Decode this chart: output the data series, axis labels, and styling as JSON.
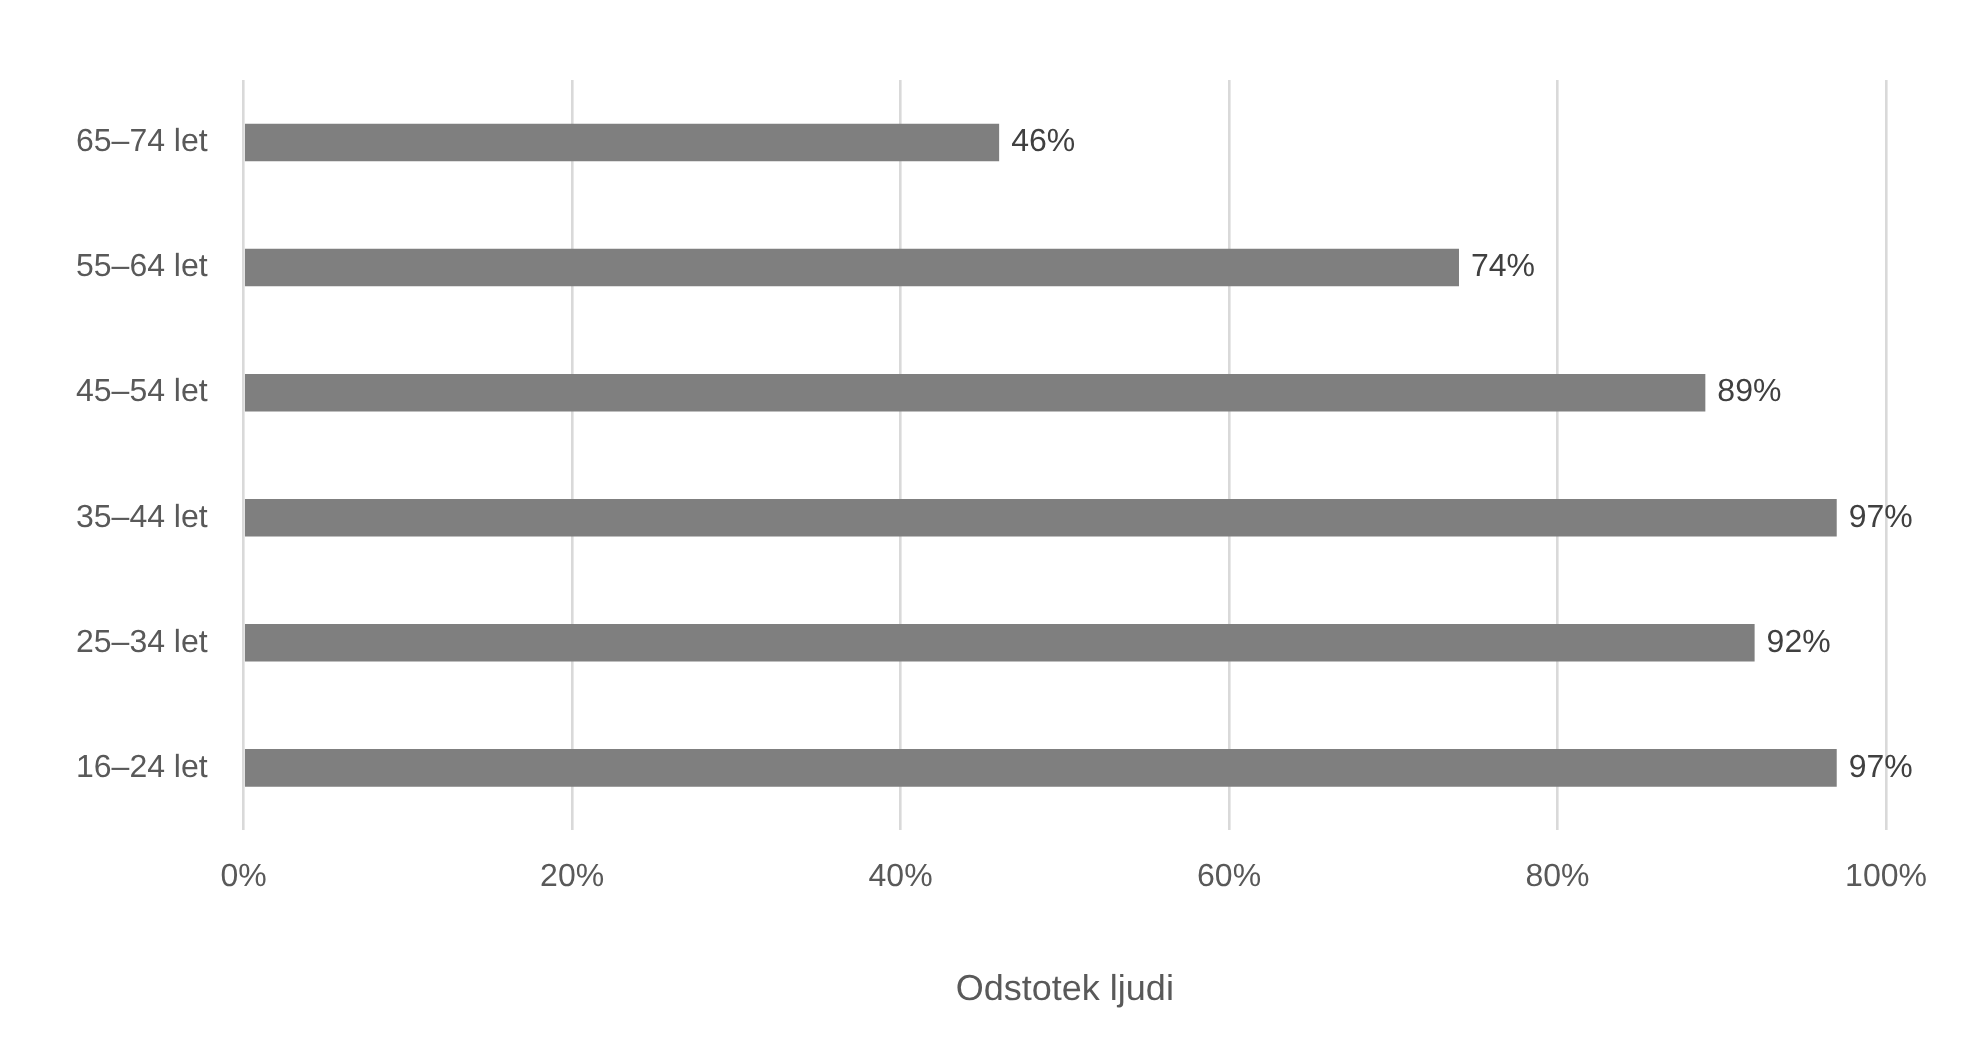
{
  "chart_data": {
    "type": "bar",
    "orientation": "horizontal",
    "xlabel": "Odstotek ljudi",
    "categories": [
      "65–74 let",
      "55–64 let",
      "45–54 let",
      "35–44 let",
      "25–34 let",
      "16–24 let"
    ],
    "values": [
      46,
      74,
      89,
      97,
      92,
      97
    ],
    "value_labels": [
      "46%",
      "74%",
      "89%",
      "97%",
      "92%",
      "97%"
    ],
    "color": "#7f7f7f",
    "xlim": [
      0,
      100
    ],
    "xticks": [
      {
        "value": 0,
        "label": "0%"
      },
      {
        "value": 20,
        "label": "20%"
      },
      {
        "value": 40,
        "label": "40%"
      },
      {
        "value": 60,
        "label": "60%"
      },
      {
        "value": 80,
        "label": "80%"
      },
      {
        "value": 100,
        "label": "100%"
      }
    ],
    "grid": "x",
    "legend": false
  }
}
